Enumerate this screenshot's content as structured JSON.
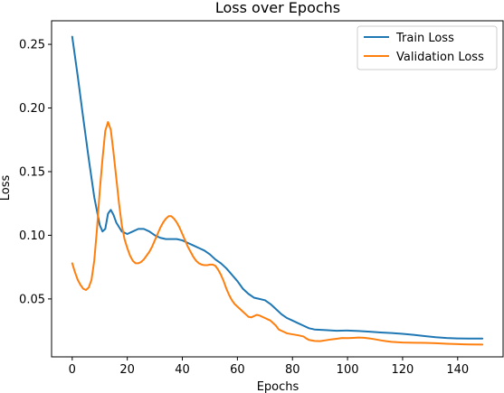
{
  "chart_data": {
    "type": "line",
    "title": "Loss over Epochs",
    "xlabel": "Epochs",
    "ylabel": "Loss",
    "xlim": [
      -7.5,
      156.5
    ],
    "ylim": [
      0.0045,
      0.2685
    ],
    "xticks": [
      0,
      20,
      40,
      60,
      80,
      100,
      120,
      140
    ],
    "yticks": [
      0.05,
      0.1,
      0.15,
      0.2,
      0.25
    ],
    "ytick_labels": [
      "0.05",
      "0.10",
      "0.15",
      "0.20",
      "0.25"
    ],
    "grid": false,
    "legend_position": "top-right",
    "series": [
      {
        "name": "Train Loss",
        "color": "#1f77b4",
        "points": [
          [
            0,
            0.256
          ],
          [
            2,
            0.225
          ],
          [
            4,
            0.192
          ],
          [
            6,
            0.16
          ],
          [
            8,
            0.13
          ],
          [
            10,
            0.108
          ],
          [
            11,
            0.103
          ],
          [
            12,
            0.105
          ],
          [
            13,
            0.117
          ],
          [
            14,
            0.12
          ],
          [
            15,
            0.116
          ],
          [
            16,
            0.11
          ],
          [
            18,
            0.103
          ],
          [
            20,
            0.101
          ],
          [
            22,
            0.103
          ],
          [
            24,
            0.105
          ],
          [
            26,
            0.105
          ],
          [
            28,
            0.103
          ],
          [
            30,
            0.1
          ],
          [
            32,
            0.098
          ],
          [
            34,
            0.097
          ],
          [
            36,
            0.097
          ],
          [
            38,
            0.097
          ],
          [
            40,
            0.096
          ],
          [
            42,
            0.094
          ],
          [
            44,
            0.092
          ],
          [
            46,
            0.09
          ],
          [
            48,
            0.088
          ],
          [
            50,
            0.085
          ],
          [
            52,
            0.081
          ],
          [
            54,
            0.078
          ],
          [
            56,
            0.074
          ],
          [
            58,
            0.069
          ],
          [
            60,
            0.064
          ],
          [
            62,
            0.058
          ],
          [
            64,
            0.054
          ],
          [
            66,
            0.051
          ],
          [
            68,
            0.05
          ],
          [
            70,
            0.049
          ],
          [
            72,
            0.046
          ],
          [
            74,
            0.042
          ],
          [
            76,
            0.038
          ],
          [
            78,
            0.035
          ],
          [
            80,
            0.033
          ],
          [
            82,
            0.031
          ],
          [
            84,
            0.029
          ],
          [
            86,
            0.027
          ],
          [
            88,
            0.026
          ],
          [
            92,
            0.0255
          ],
          [
            96,
            0.025
          ],
          [
            100,
            0.0252
          ],
          [
            104,
            0.0248
          ],
          [
            108,
            0.0243
          ],
          [
            112,
            0.0237
          ],
          [
            116,
            0.0232
          ],
          [
            120,
            0.0226
          ],
          [
            124,
            0.0218
          ],
          [
            128,
            0.0208
          ],
          [
            132,
            0.0199
          ],
          [
            136,
            0.0193
          ],
          [
            140,
            0.019
          ],
          [
            144,
            0.0189
          ],
          [
            149,
            0.0189
          ]
        ]
      },
      {
        "name": "Validation Loss",
        "color": "#ff7f0e",
        "points": [
          [
            0,
            0.078
          ],
          [
            1,
            0.071
          ],
          [
            2,
            0.065
          ],
          [
            3,
            0.061
          ],
          [
            4,
            0.058
          ],
          [
            5,
            0.057
          ],
          [
            6,
            0.059
          ],
          [
            7,
            0.065
          ],
          [
            8,
            0.08
          ],
          [
            9,
            0.105
          ],
          [
            10,
            0.135
          ],
          [
            11,
            0.16
          ],
          [
            12,
            0.182
          ],
          [
            13,
            0.189
          ],
          [
            14,
            0.183
          ],
          [
            15,
            0.165
          ],
          [
            16,
            0.145
          ],
          [
            17,
            0.125
          ],
          [
            18,
            0.108
          ],
          [
            19,
            0.097
          ],
          [
            20,
            0.09
          ],
          [
            21,
            0.084
          ],
          [
            22,
            0.08
          ],
          [
            23,
            0.078
          ],
          [
            24,
            0.078
          ],
          [
            25,
            0.079
          ],
          [
            26,
            0.081
          ],
          [
            27,
            0.084
          ],
          [
            28,
            0.087
          ],
          [
            29,
            0.091
          ],
          [
            30,
            0.096
          ],
          [
            31,
            0.101
          ],
          [
            32,
            0.106
          ],
          [
            33,
            0.11
          ],
          [
            34,
            0.113
          ],
          [
            35,
            0.115
          ],
          [
            36,
            0.115
          ],
          [
            37,
            0.113
          ],
          [
            38,
            0.11
          ],
          [
            39,
            0.106
          ],
          [
            40,
            0.101
          ],
          [
            41,
            0.096
          ],
          [
            42,
            0.091
          ],
          [
            43,
            0.087
          ],
          [
            44,
            0.083
          ],
          [
            45,
            0.08
          ],
          [
            46,
            0.078
          ],
          [
            47,
            0.077
          ],
          [
            48,
            0.0765
          ],
          [
            49,
            0.0765
          ],
          [
            50,
            0.077
          ],
          [
            51,
            0.077
          ],
          [
            52,
            0.076
          ],
          [
            53,
            0.073
          ],
          [
            54,
            0.069
          ],
          [
            55,
            0.064
          ],
          [
            56,
            0.058
          ],
          [
            57,
            0.053
          ],
          [
            58,
            0.049
          ],
          [
            59,
            0.046
          ],
          [
            60,
            0.044
          ],
          [
            61,
            0.042
          ],
          [
            62,
            0.04
          ],
          [
            63,
            0.038
          ],
          [
            64,
            0.036
          ],
          [
            65,
            0.0355
          ],
          [
            66,
            0.0365
          ],
          [
            67,
            0.0375
          ],
          [
            68,
            0.037
          ],
          [
            69,
            0.036
          ],
          [
            70,
            0.035
          ],
          [
            71,
            0.034
          ],
          [
            72,
            0.033
          ],
          [
            73,
            0.031
          ],
          [
            74,
            0.029
          ],
          [
            75,
            0.026
          ],
          [
            76,
            0.025
          ],
          [
            77,
            0.024
          ],
          [
            78,
            0.023
          ],
          [
            80,
            0.0222
          ],
          [
            82,
            0.0215
          ],
          [
            84,
            0.0205
          ],
          [
            85,
            0.019
          ],
          [
            86,
            0.0178
          ],
          [
            88,
            0.017
          ],
          [
            90,
            0.0168
          ],
          [
            92,
            0.0175
          ],
          [
            94,
            0.0182
          ],
          [
            96,
            0.0187
          ],
          [
            98,
            0.0193
          ],
          [
            100,
            0.0192
          ],
          [
            102,
            0.0194
          ],
          [
            104,
            0.0197
          ],
          [
            106,
            0.0195
          ],
          [
            108,
            0.019
          ],
          [
            110,
            0.0183
          ],
          [
            112,
            0.0175
          ],
          [
            114,
            0.0168
          ],
          [
            116,
            0.0163
          ],
          [
            118,
            0.016
          ],
          [
            120,
            0.0158
          ],
          [
            124,
            0.0156
          ],
          [
            128,
            0.0155
          ],
          [
            132,
            0.0152
          ],
          [
            136,
            0.0148
          ],
          [
            140,
            0.0145
          ],
          [
            144,
            0.0143
          ],
          [
            149,
            0.0142
          ]
        ]
      }
    ]
  }
}
